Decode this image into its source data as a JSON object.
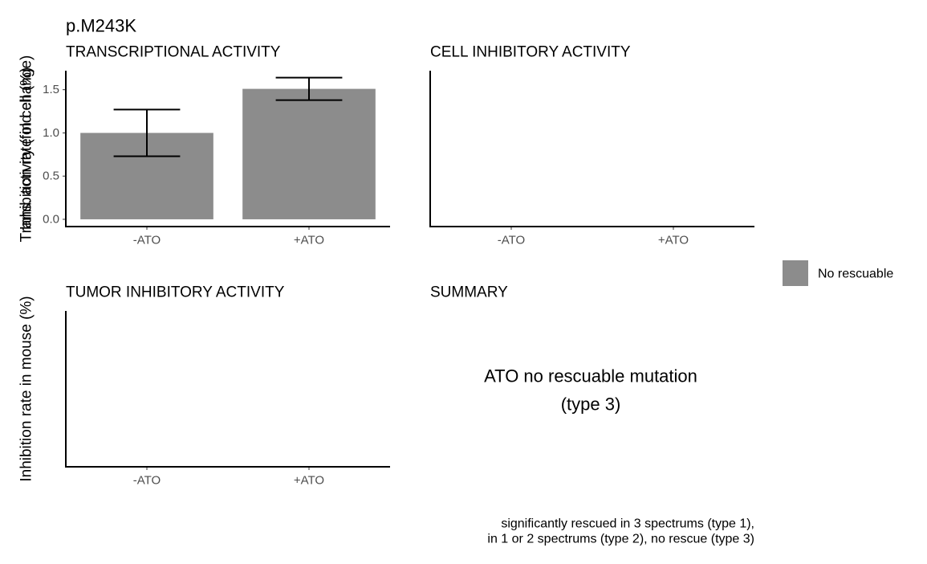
{
  "title": "p.M243K",
  "legend": {
    "label": "No rescuable",
    "color": "#8c8c8c"
  },
  "chart_data": [
    {
      "type": "bar",
      "title": "TRANSCRIPTIONAL ACTIVITY",
      "y_label": "Trans. activity (fold change)",
      "categories": [
        "-ATO",
        "+ATO"
      ],
      "values": [
        1.0,
        1.51
      ],
      "errors": [
        0.27,
        0.13
      ],
      "color": "#8c8c8c",
      "ylim": [
        -0.084,
        1.72
      ],
      "yticks": [
        {
          "value": 0,
          "label": "0.0"
        },
        {
          "value": 0.5,
          "label": "0.5"
        },
        {
          "value": 1,
          "label": "1.0"
        },
        {
          "value": 1.5,
          "label": "1.5"
        }
      ]
    },
    {
      "type": "bar",
      "title": "CELL INHIBITORY ACTIVITY",
      "y_label": "Inhibition rate in cell (%)",
      "categories": [
        "-ATO",
        "+ATO"
      ]
    },
    {
      "type": "bar",
      "title": "TUMOR INHIBITORY ACTIVITY",
      "y_label": "Inhibition rate in mouse (%)",
      "categories": [
        "-ATO",
        "+ATO"
      ]
    },
    {
      "type": "text",
      "title": "SUMMARY",
      "text": [
        "ATO no rescuable mutation",
        "(type 3)"
      ]
    }
  ],
  "caption": [
    "significantly rescued in 3 spectrums (type 1),",
    "in 1 or 2 spectrums (type 2), no rescue (type 3)"
  ]
}
